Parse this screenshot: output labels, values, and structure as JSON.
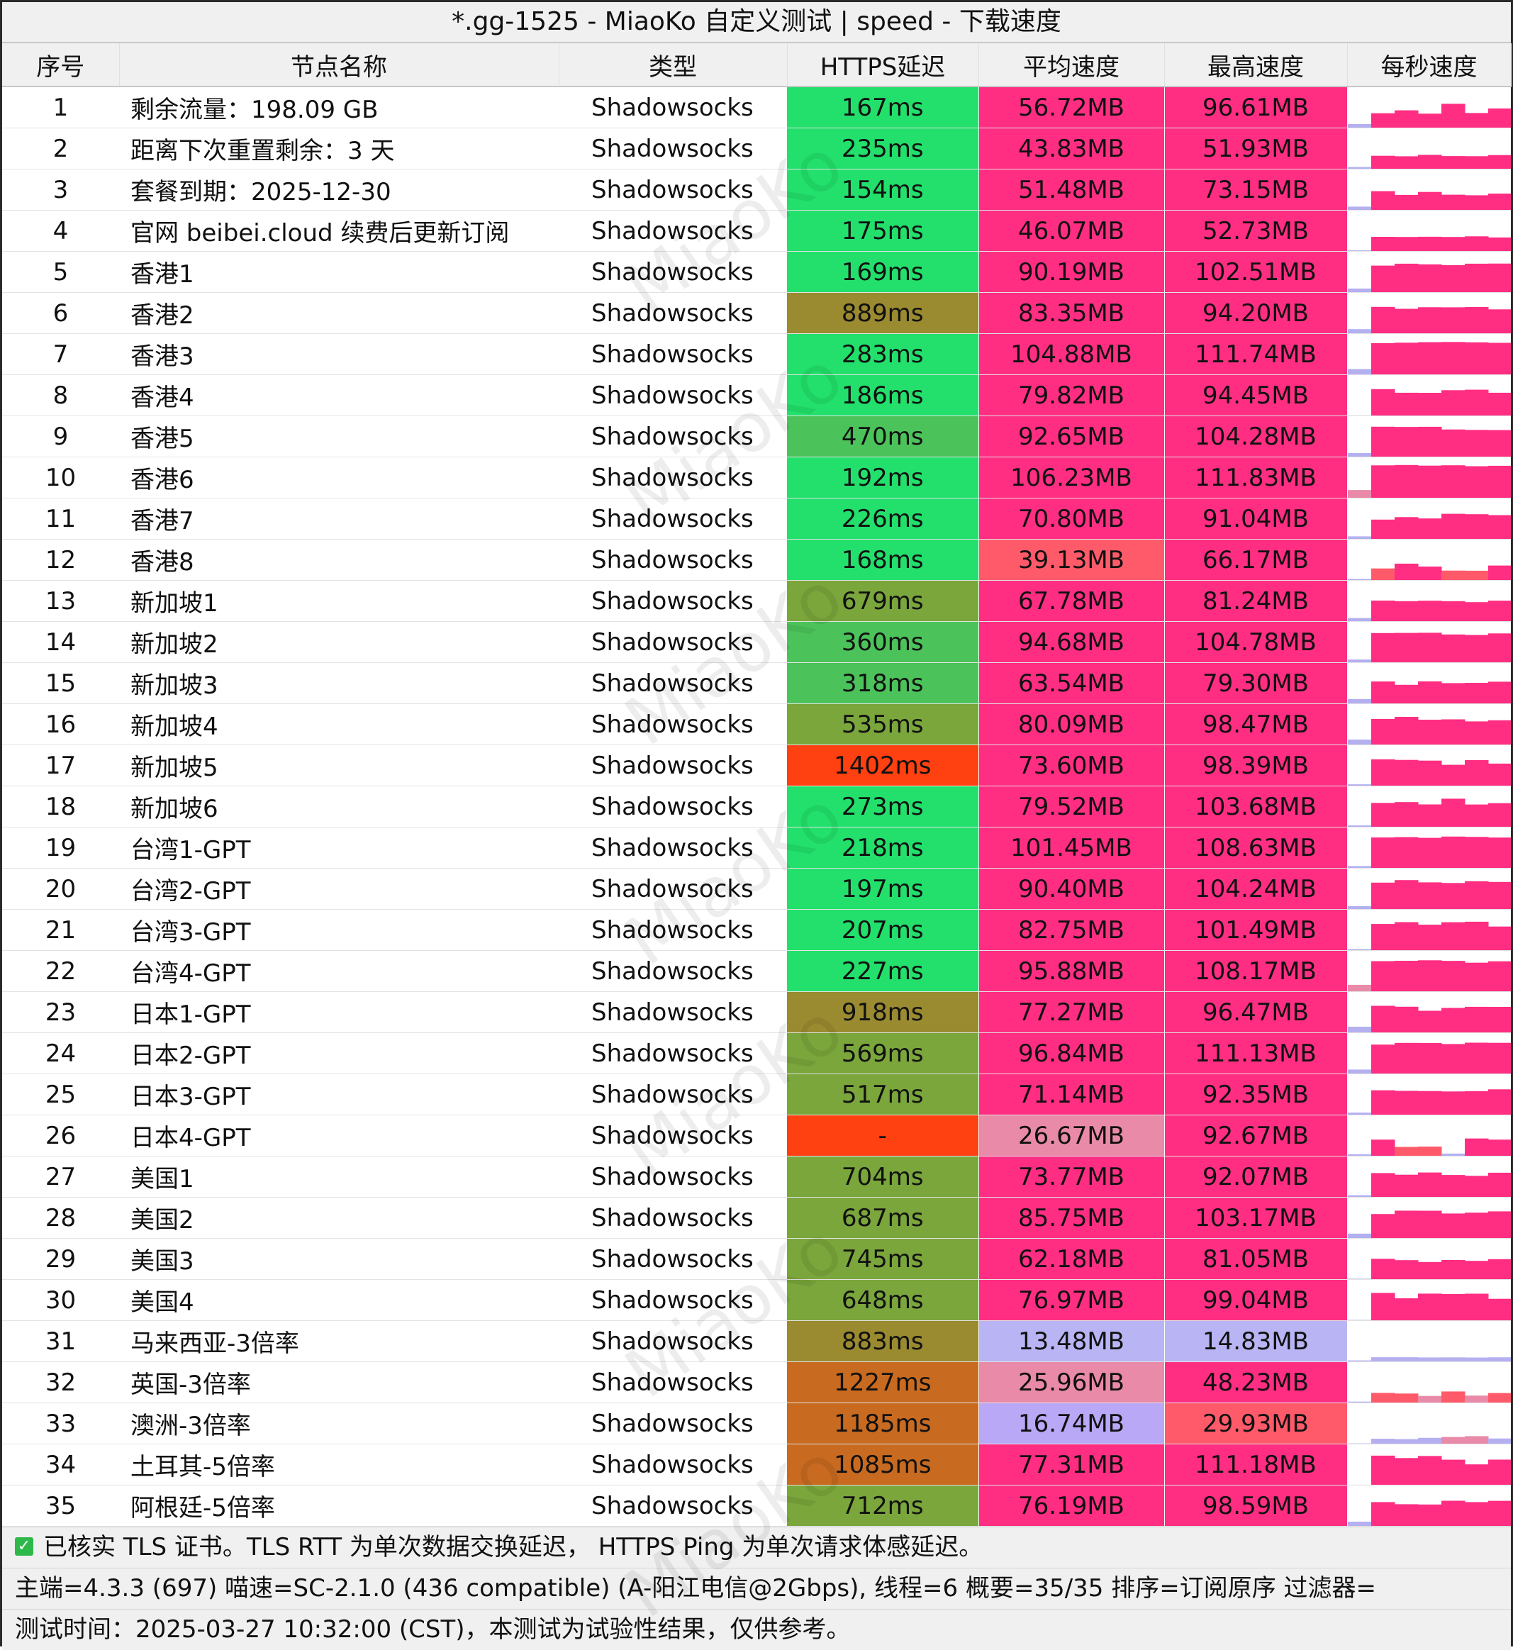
{
  "window_title": "*.gg-1525 - MiaoKo 自定义测试 | speed - 下载速度",
  "watermark_text": "MiaoKo",
  "columns": [
    "序号",
    "节点名称",
    "类型",
    "HTTPS延迟",
    "平均速度",
    "最高速度",
    "每秒速度"
  ],
  "rows": [
    {
      "idx": "1",
      "name": "剩余流量：198.09 GB",
      "type": "Shadowsocks",
      "latency": "167ms",
      "avg": "56.72MB",
      "max": "96.61MB"
    },
    {
      "idx": "2",
      "name": "距离下次重置剩余：3 天",
      "type": "Shadowsocks",
      "latency": "235ms",
      "avg": "43.83MB",
      "max": "51.93MB"
    },
    {
      "idx": "3",
      "name": "套餐到期：2025-12-30",
      "type": "Shadowsocks",
      "latency": "154ms",
      "avg": "51.48MB",
      "max": "73.15MB"
    },
    {
      "idx": "4",
      "name": "官网 beibei.cloud 续费后更新订阅",
      "type": "Shadowsocks",
      "latency": "175ms",
      "avg": "46.07MB",
      "max": "52.73MB"
    },
    {
      "idx": "5",
      "name": "香港1",
      "type": "Shadowsocks",
      "latency": "169ms",
      "avg": "90.19MB",
      "max": "102.51MB"
    },
    {
      "idx": "6",
      "name": "香港2",
      "type": "Shadowsocks",
      "latency": "889ms",
      "avg": "83.35MB",
      "max": "94.20MB"
    },
    {
      "idx": "7",
      "name": "香港3",
      "type": "Shadowsocks",
      "latency": "283ms",
      "avg": "104.88MB",
      "max": "111.74MB"
    },
    {
      "idx": "8",
      "name": "香港4",
      "type": "Shadowsocks",
      "latency": "186ms",
      "avg": "79.82MB",
      "max": "94.45MB"
    },
    {
      "idx": "9",
      "name": "香港5",
      "type": "Shadowsocks",
      "latency": "470ms",
      "avg": "92.65MB",
      "max": "104.28MB"
    },
    {
      "idx": "10",
      "name": "香港6",
      "type": "Shadowsocks",
      "latency": "192ms",
      "avg": "106.23MB",
      "max": "111.83MB"
    },
    {
      "idx": "11",
      "name": "香港7",
      "type": "Shadowsocks",
      "latency": "226ms",
      "avg": "70.80MB",
      "max": "91.04MB"
    },
    {
      "idx": "12",
      "name": "香港8",
      "type": "Shadowsocks",
      "latency": "168ms",
      "avg": "39.13MB",
      "max": "66.17MB"
    },
    {
      "idx": "13",
      "name": "新加坡1",
      "type": "Shadowsocks",
      "latency": "679ms",
      "avg": "67.78MB",
      "max": "81.24MB"
    },
    {
      "idx": "14",
      "name": "新加坡2",
      "type": "Shadowsocks",
      "latency": "360ms",
      "avg": "94.68MB",
      "max": "104.78MB"
    },
    {
      "idx": "15",
      "name": "新加坡3",
      "type": "Shadowsocks",
      "latency": "318ms",
      "avg": "63.54MB",
      "max": "79.30MB"
    },
    {
      "idx": "16",
      "name": "新加坡4",
      "type": "Shadowsocks",
      "latency": "535ms",
      "avg": "80.09MB",
      "max": "98.47MB"
    },
    {
      "idx": "17",
      "name": "新加坡5",
      "type": "Shadowsocks",
      "latency": "1402ms",
      "avg": "73.60MB",
      "max": "98.39MB"
    },
    {
      "idx": "18",
      "name": "新加坡6",
      "type": "Shadowsocks",
      "latency": "273ms",
      "avg": "79.52MB",
      "max": "103.68MB"
    },
    {
      "idx": "19",
      "name": "台湾1-GPT",
      "type": "Shadowsocks",
      "latency": "218ms",
      "avg": "101.45MB",
      "max": "108.63MB"
    },
    {
      "idx": "20",
      "name": "台湾2-GPT",
      "type": "Shadowsocks",
      "latency": "197ms",
      "avg": "90.40MB",
      "max": "104.24MB"
    },
    {
      "idx": "21",
      "name": "台湾3-GPT",
      "type": "Shadowsocks",
      "latency": "207ms",
      "avg": "82.75MB",
      "max": "101.49MB"
    },
    {
      "idx": "22",
      "name": "台湾4-GPT",
      "type": "Shadowsocks",
      "latency": "227ms",
      "avg": "95.88MB",
      "max": "108.17MB"
    },
    {
      "idx": "23",
      "name": "日本1-GPT",
      "type": "Shadowsocks",
      "latency": "918ms",
      "avg": "77.27MB",
      "max": "96.47MB"
    },
    {
      "idx": "24",
      "name": "日本2-GPT",
      "type": "Shadowsocks",
      "latency": "569ms",
      "avg": "96.84MB",
      "max": "111.13MB"
    },
    {
      "idx": "25",
      "name": "日本3-GPT",
      "type": "Shadowsocks",
      "latency": "517ms",
      "avg": "71.14MB",
      "max": "92.35MB"
    },
    {
      "idx": "26",
      "name": "日本4-GPT",
      "type": "Shadowsocks",
      "latency": "-",
      "avg": "26.67MB",
      "max": "92.67MB"
    },
    {
      "idx": "27",
      "name": "美国1",
      "type": "Shadowsocks",
      "latency": "704ms",
      "avg": "73.77MB",
      "max": "92.07MB"
    },
    {
      "idx": "28",
      "name": "美国2",
      "type": "Shadowsocks",
      "latency": "687ms",
      "avg": "85.75MB",
      "max": "103.17MB"
    },
    {
      "idx": "29",
      "name": "美国3",
      "type": "Shadowsocks",
      "latency": "745ms",
      "avg": "62.18MB",
      "max": "81.05MB"
    },
    {
      "idx": "30",
      "name": "美国4",
      "type": "Shadowsocks",
      "latency": "648ms",
      "avg": "76.97MB",
      "max": "99.04MB"
    },
    {
      "idx": "31",
      "name": "马来西亚-3倍率",
      "type": "Shadowsocks",
      "latency": "883ms",
      "avg": "13.48MB",
      "max": "14.83MB"
    },
    {
      "idx": "32",
      "name": "英国-3倍率",
      "type": "Shadowsocks",
      "latency": "1227ms",
      "avg": "25.96MB",
      "max": "48.23MB"
    },
    {
      "idx": "33",
      "name": "澳洲-3倍率",
      "type": "Shadowsocks",
      "latency": "1185ms",
      "avg": "16.74MB",
      "max": "29.93MB"
    },
    {
      "idx": "34",
      "name": "土耳其-5倍率",
      "type": "Shadowsocks",
      "latency": "1085ms",
      "avg": "77.31MB",
      "max": "111.18MB"
    },
    {
      "idx": "35",
      "name": "阿根廷-5倍率",
      "type": "Shadowsocks",
      "latency": "712ms",
      "avg": "76.19MB",
      "max": "98.59MB"
    }
  ],
  "colors": {
    "latency_fast": "#22e06b",
    "latency_ok": "#4cc35a",
    "latency_mid": "#7aa63c",
    "latency_slow": "#9a8a30",
    "latency_veryslow": "#c86a20",
    "latency_fail": "#ff4010",
    "speed_high": "#ff2e82",
    "speed_mid": "#ff5a6a",
    "speed_low_pink": "#e98aa8",
    "speed_low_lavender": "#b9a8f6",
    "speed_very_low": "#b9b5f4",
    "spark_low": "#b4b0f0"
  },
  "footer": {
    "check_icon": "checkbox-checked-icon",
    "line1": "已核实 TLS 证书。TLS RTT 为单次数据交换延迟， HTTPS Ping 为单次请求体感延迟。",
    "line2": "主端=4.3.3 (697) 喵速=SC-2.1.0 (436 compatible) (A-阳江电信@2Gbps), 线程=6 概要=35/35 排序=订阅原序 过滤器=",
    "line3": "测试时间：2025-03-27 10:32:00 (CST)，本测试为试验性结果，仅供参考。"
  }
}
